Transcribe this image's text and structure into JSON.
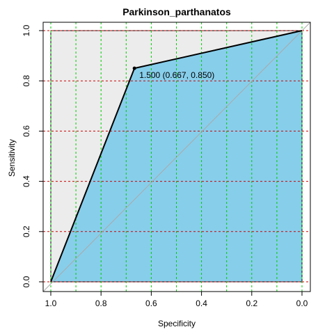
{
  "chart_data": {
    "type": "line",
    "title": "Parkinson_parthanatos",
    "xlabel": "Specificity",
    "ylabel": "Sensitivity",
    "x_reversed": true,
    "xlim": [
      1.0,
      0.0
    ],
    "ylim": [
      0.0,
      1.0
    ],
    "x_ticks": [
      1.0,
      0.8,
      0.6,
      0.4,
      0.2,
      0.0
    ],
    "x_tick_labels": [
      "1.0",
      "0.8",
      "0.6",
      "0.4",
      "0.2",
      "0.0"
    ],
    "y_ticks": [
      0.0,
      0.2,
      0.4,
      0.6,
      0.8,
      1.0
    ],
    "y_tick_labels": [
      "0.0",
      "0.2",
      "0.4",
      "0.6",
      "0.8",
      "1.0"
    ],
    "series": [
      {
        "x": [
          1.0,
          0.667,
          0.0
        ],
        "y": [
          0.0,
          0.85,
          1.0
        ]
      }
    ],
    "diagonal": {
      "x": [
        1.0,
        0.0
      ],
      "y": [
        0.0,
        1.0
      ]
    },
    "highlight_point": {
      "x": 0.667,
      "y": 0.85
    },
    "annotation": "1.500 (0.667, 0.850)",
    "vertical_gridlines": [
      1.0,
      0.9,
      0.8,
      0.7,
      0.6,
      0.5,
      0.4,
      0.3,
      0.2,
      0.1,
      0.0
    ],
    "horizontal_gridlines": [
      0.0,
      0.2,
      0.4,
      0.6,
      0.8,
      1.0
    ],
    "colors": {
      "auc_fill": "#87ceeb",
      "upper_fill": "#ececec",
      "curve": "#000000",
      "diagonal": "#aaaaaa",
      "vertical_grid": "#00cc00",
      "horizontal_grid": "#cc0000"
    }
  }
}
